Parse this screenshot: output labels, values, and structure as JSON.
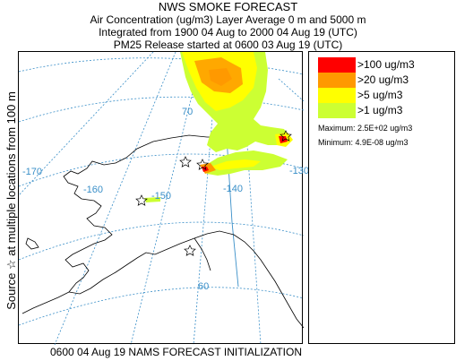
{
  "header": {
    "title": "NWS SMOKE FORECAST",
    "line1": "Air Concentration (ug/m3) Layer Average    0 m and  5000 m",
    "line2": "Integrated from 1900 04 Aug to 2000 04 Aug 19 (UTC)",
    "line3": "PM25 Release started at 0600 03 Aug 19 (UTC)"
  },
  "side_label": "Source ☆ at multiple locations   from   100 m",
  "map": {
    "longitude_labels": [
      "-170",
      "-160",
      "-150",
      "-140",
      "-130"
    ],
    "latitude_labels": [
      "70",
      "60"
    ],
    "colors": {
      "graticule": "#3a8fc8",
      "coast": "#000000"
    }
  },
  "legend": {
    "items": [
      {
        "label": ">100 ug/m3",
        "color": "#ff0000"
      },
      {
        "label": ">20 ug/m3",
        "color": "#ff9900"
      },
      {
        "label": ">5 ug/m3",
        "color": "#ffff00"
      },
      {
        "label": ">1 ug/m3",
        "color": "#ccff33"
      }
    ],
    "maximum": "Maximum: 2.5E+02 ug/m3",
    "minimum": "Minimum: 4.9E-08 ug/m3"
  },
  "footer": "0600 04 Aug 19 NAMS FORECAST INITIALIZATION"
}
